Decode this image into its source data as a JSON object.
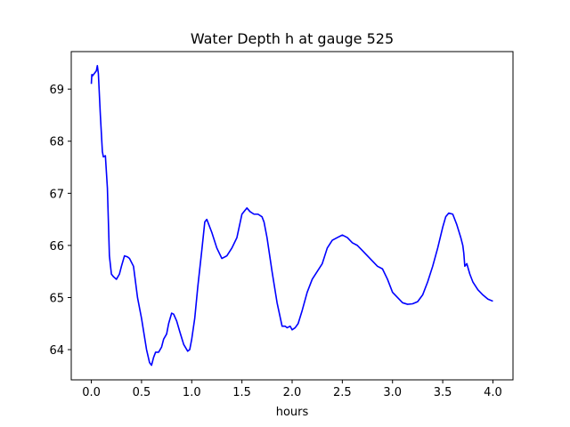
{
  "chart_data": {
    "type": "line",
    "title": "Water Depth h at gauge 525",
    "xlabel": "hours",
    "ylabel": "",
    "xlim": [
      -0.2,
      4.2
    ],
    "ylim": [
      63.42,
      69.72
    ],
    "grid": false,
    "xticks": [
      "0.0",
      "0.5",
      "1.0",
      "1.5",
      "2.0",
      "2.5",
      "3.0",
      "3.5",
      "4.0"
    ],
    "xtick_values": [
      0,
      0.5,
      1.0,
      1.5,
      2.0,
      2.5,
      3.0,
      3.5,
      4.0
    ],
    "yticks": [
      "64",
      "65",
      "66",
      "67",
      "68",
      "69"
    ],
    "ytick_values": [
      64,
      65,
      66,
      67,
      68,
      69
    ],
    "series": [
      {
        "color": "#0000ff",
        "x": [
          0.0,
          0.005,
          0.01,
          0.03,
          0.05,
          0.06,
          0.07,
          0.09,
          0.11,
          0.12,
          0.14,
          0.16,
          0.18,
          0.2,
          0.22,
          0.25,
          0.28,
          0.3,
          0.33,
          0.36,
          0.38,
          0.42,
          0.44,
          0.46,
          0.5,
          0.55,
          0.58,
          0.6,
          0.62,
          0.64,
          0.67,
          0.7,
          0.72,
          0.75,
          0.77,
          0.8,
          0.82,
          0.85,
          0.88,
          0.92,
          0.96,
          0.98,
          1.0,
          1.03,
          1.06,
          1.1,
          1.13,
          1.15,
          1.17,
          1.2,
          1.25,
          1.3,
          1.35,
          1.4,
          1.45,
          1.5,
          1.55,
          1.58,
          1.62,
          1.66,
          1.7,
          1.72,
          1.75,
          1.8,
          1.85,
          1.9,
          1.93,
          1.95,
          1.98,
          2.0,
          2.03,
          2.06,
          2.1,
          2.15,
          2.2,
          2.25,
          2.3,
          2.35,
          2.4,
          2.45,
          2.5,
          2.55,
          2.6,
          2.65,
          2.7,
          2.75,
          2.8,
          2.85,
          2.9,
          2.95,
          3.0,
          3.05,
          3.1,
          3.15,
          3.2,
          3.25,
          3.3,
          3.35,
          3.4,
          3.45,
          3.5,
          3.53,
          3.56,
          3.6,
          3.64,
          3.68,
          3.7,
          3.71,
          3.72,
          3.74,
          3.77,
          3.8,
          3.85,
          3.9,
          3.95,
          4.0
        ],
        "y": [
          69.1,
          69.28,
          69.25,
          69.3,
          69.35,
          69.45,
          69.3,
          68.5,
          67.8,
          67.7,
          67.72,
          67.1,
          65.8,
          65.45,
          65.4,
          65.35,
          65.45,
          65.6,
          65.8,
          65.78,
          65.75,
          65.6,
          65.3,
          65.0,
          64.6,
          64.0,
          63.75,
          63.7,
          63.85,
          63.95,
          63.95,
          64.05,
          64.2,
          64.3,
          64.5,
          64.7,
          64.68,
          64.55,
          64.35,
          64.1,
          63.97,
          64.0,
          64.2,
          64.6,
          65.2,
          65.9,
          66.45,
          66.5,
          66.4,
          66.25,
          65.95,
          65.75,
          65.8,
          65.95,
          66.15,
          66.6,
          66.72,
          66.65,
          66.6,
          66.6,
          66.55,
          66.45,
          66.15,
          65.5,
          64.9,
          64.45,
          64.45,
          64.42,
          64.45,
          64.38,
          64.42,
          64.5,
          64.75,
          65.1,
          65.35,
          65.5,
          65.65,
          65.95,
          66.1,
          66.15,
          66.2,
          66.15,
          66.05,
          66.0,
          65.9,
          65.8,
          65.7,
          65.6,
          65.55,
          65.35,
          65.1,
          65.0,
          64.9,
          64.87,
          64.88,
          64.92,
          65.05,
          65.3,
          65.6,
          65.95,
          66.35,
          66.55,
          66.62,
          66.6,
          66.4,
          66.15,
          66.0,
          65.85,
          65.6,
          65.65,
          65.45,
          65.3,
          65.15,
          65.05,
          64.97,
          64.93
        ]
      }
    ]
  }
}
